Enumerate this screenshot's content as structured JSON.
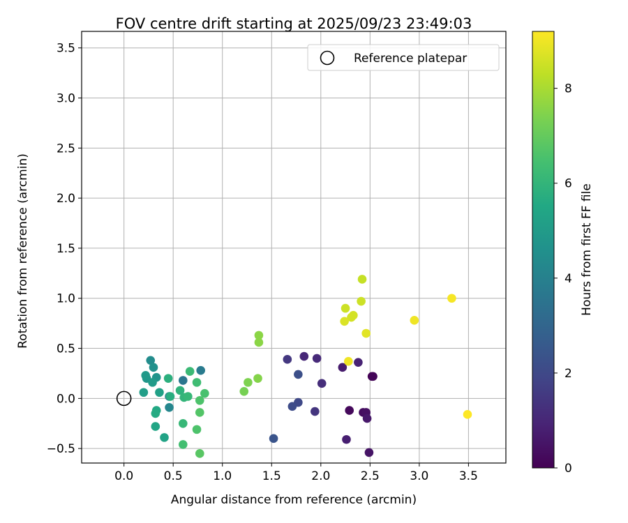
{
  "chart_data": {
    "type": "scatter",
    "title": "FOV centre drift starting at 2025/09/23 23:49:03",
    "xlabel": "Angular distance from reference (arcmin)",
    "ylabel": "Rotation from reference (arcmin)",
    "xlim": [
      -0.43,
      3.88
    ],
    "ylim": [
      -0.645,
      3.665
    ],
    "xticks": [
      "0.0",
      "0.5",
      "1.0",
      "1.5",
      "2.0",
      "2.5",
      "3.0",
      "3.5"
    ],
    "yticks": [
      "−0.5",
      "0.0",
      "0.5",
      "1.0",
      "1.5",
      "2.0",
      "2.5",
      "3.0",
      "3.5"
    ],
    "grid": true,
    "legend": {
      "label": "Reference platepar",
      "position": "top-right"
    },
    "reference": {
      "x": 0.0,
      "y": 0.0
    },
    "colorbar": {
      "label": "Hours from first FF file",
      "colormap": "viridis",
      "range": [
        0,
        9.2
      ],
      "ticks": [
        "0",
        "2",
        "4",
        "6",
        "8"
      ]
    },
    "points": [
      {
        "x": 2.52,
        "y": 0.22,
        "h": 0.0
      },
      {
        "x": 2.53,
        "y": 0.22,
        "h": 0.1
      },
      {
        "x": 2.29,
        "y": -0.12,
        "h": 0.2
      },
      {
        "x": 2.43,
        "y": -0.14,
        "h": 0.3
      },
      {
        "x": 2.46,
        "y": -0.14,
        "h": 0.4
      },
      {
        "x": 2.49,
        "y": -0.54,
        "h": 0.5
      },
      {
        "x": 2.47,
        "y": -0.2,
        "h": 0.6
      },
      {
        "x": 2.22,
        "y": 0.31,
        "h": 0.7
      },
      {
        "x": 2.26,
        "y": -0.41,
        "h": 0.8
      },
      {
        "x": 2.38,
        "y": 0.36,
        "h": 0.9
      },
      {
        "x": 1.83,
        "y": 0.42,
        "h": 1.0
      },
      {
        "x": 1.96,
        "y": 0.4,
        "h": 1.1
      },
      {
        "x": 2.01,
        "y": 0.15,
        "h": 1.2
      },
      {
        "x": 1.94,
        "y": -0.13,
        "h": 1.4
      },
      {
        "x": 1.66,
        "y": 0.39,
        "h": 1.5
      },
      {
        "x": 1.77,
        "y": -0.04,
        "h": 2.0
      },
      {
        "x": 1.71,
        "y": -0.08,
        "h": 2.1
      },
      {
        "x": 1.77,
        "y": 0.24,
        "h": 2.2
      },
      {
        "x": 1.52,
        "y": -0.4,
        "h": 2.4
      },
      {
        "x": 0.6,
        "y": 0.18,
        "h": 3.6
      },
      {
        "x": 0.78,
        "y": 0.28,
        "h": 3.8
      },
      {
        "x": 0.46,
        "y": 0.02,
        "h": 4.0
      },
      {
        "x": 0.46,
        "y": -0.09,
        "h": 4.2
      },
      {
        "x": 0.27,
        "y": 0.38,
        "h": 4.4
      },
      {
        "x": 0.3,
        "y": 0.31,
        "h": 4.6
      },
      {
        "x": 0.33,
        "y": 0.21,
        "h": 4.7
      },
      {
        "x": 0.23,
        "y": 0.2,
        "h": 4.8
      },
      {
        "x": 0.22,
        "y": 0.23,
        "h": 4.9
      },
      {
        "x": 0.29,
        "y": 0.16,
        "h": 5.0
      },
      {
        "x": 0.2,
        "y": 0.06,
        "h": 5.1
      },
      {
        "x": 0.36,
        "y": 0.06,
        "h": 5.2
      },
      {
        "x": 0.41,
        "y": -0.39,
        "h": 5.3
      },
      {
        "x": 0.32,
        "y": -0.28,
        "h": 5.4
      },
      {
        "x": 0.33,
        "y": -0.12,
        "h": 5.5
      },
      {
        "x": 0.32,
        "y": -0.15,
        "h": 5.6
      },
      {
        "x": 0.47,
        "y": 0.02,
        "h": 5.7
      },
      {
        "x": 0.45,
        "y": 0.2,
        "h": 5.8
      },
      {
        "x": 0.57,
        "y": 0.08,
        "h": 5.9
      },
      {
        "x": 0.61,
        "y": 0.01,
        "h": 6.0
      },
      {
        "x": 0.65,
        "y": 0.02,
        "h": 6.1
      },
      {
        "x": 0.6,
        "y": -0.25,
        "h": 6.1
      },
      {
        "x": 0.67,
        "y": 0.27,
        "h": 6.2
      },
      {
        "x": 0.74,
        "y": 0.16,
        "h": 6.3
      },
      {
        "x": 0.6,
        "y": -0.46,
        "h": 6.4
      },
      {
        "x": 0.82,
        "y": 0.05,
        "h": 6.5
      },
      {
        "x": 0.77,
        "y": -0.02,
        "h": 6.6
      },
      {
        "x": 0.74,
        "y": -0.31,
        "h": 6.6
      },
      {
        "x": 0.77,
        "y": -0.14,
        "h": 6.7
      },
      {
        "x": 0.77,
        "y": -0.55,
        "h": 6.8
      },
      {
        "x": 1.22,
        "y": 0.07,
        "h": 7.3
      },
      {
        "x": 1.26,
        "y": 0.16,
        "h": 7.4
      },
      {
        "x": 1.36,
        "y": 0.2,
        "h": 7.5
      },
      {
        "x": 1.37,
        "y": 0.56,
        "h": 7.6
      },
      {
        "x": 1.37,
        "y": 0.63,
        "h": 7.6
      },
      {
        "x": 2.42,
        "y": 1.19,
        "h": 8.4
      },
      {
        "x": 2.25,
        "y": 0.9,
        "h": 8.5
      },
      {
        "x": 2.41,
        "y": 0.97,
        "h": 8.5
      },
      {
        "x": 2.31,
        "y": 0.81,
        "h": 8.6
      },
      {
        "x": 2.33,
        "y": 0.83,
        "h": 8.6
      },
      {
        "x": 2.24,
        "y": 0.77,
        "h": 8.7
      },
      {
        "x": 2.46,
        "y": 0.65,
        "h": 8.8
      },
      {
        "x": 2.28,
        "y": 0.37,
        "h": 9.0
      },
      {
        "x": 2.95,
        "y": 0.78,
        "h": 9.0
      },
      {
        "x": 3.33,
        "y": 1.0,
        "h": 9.1
      },
      {
        "x": 3.49,
        "y": -0.16,
        "h": 9.2
      }
    ]
  }
}
